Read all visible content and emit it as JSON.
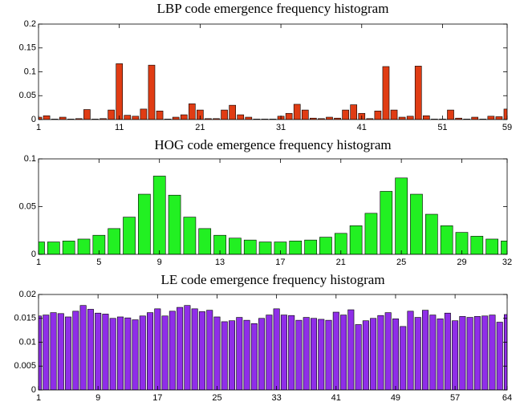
{
  "chart_data": [
    {
      "type": "bar",
      "title": "LBP code emergence frequency histogram",
      "color": "#e03c14",
      "x": [
        1,
        2,
        3,
        4,
        5,
        6,
        7,
        8,
        9,
        10,
        11,
        12,
        13,
        14,
        15,
        16,
        17,
        18,
        19,
        20,
        21,
        22,
        23,
        24,
        25,
        26,
        27,
        28,
        29,
        30,
        31,
        32,
        33,
        34,
        35,
        36,
        37,
        38,
        39,
        40,
        41,
        42,
        43,
        44,
        45,
        46,
        47,
        48,
        49,
        50,
        51,
        52,
        53,
        54,
        55,
        56,
        57,
        58,
        59
      ],
      "values": [
        0.005,
        0.008,
        0.001,
        0.005,
        0.001,
        0.002,
        0.021,
        0.001,
        0.002,
        0.02,
        0.117,
        0.009,
        0.007,
        0.022,
        0.114,
        0.018,
        0.001,
        0.005,
        0.01,
        0.033,
        0.02,
        0.002,
        0.002,
        0.02,
        0.03,
        0.01,
        0.005,
        0.001,
        0.001,
        0.001,
        0.007,
        0.013,
        0.032,
        0.02,
        0.003,
        0.002,
        0.005,
        0.003,
        0.02,
        0.031,
        0.013,
        0.002,
        0.018,
        0.111,
        0.02,
        0.005,
        0.007,
        0.112,
        0.008,
        0.001,
        0.001,
        0.02,
        0.003,
        0.001,
        0.005,
        0.001,
        0.007,
        0.006,
        0.022
      ],
      "xlim": [
        1,
        59
      ],
      "xticks": [
        1,
        11,
        21,
        31,
        41,
        51,
        59
      ],
      "ylim": [
        0,
        0.2
      ],
      "yticks": [
        0,
        0.05,
        0.1,
        0.15,
        0.2
      ]
    },
    {
      "type": "bar",
      "title": "HOG code emergence frequency histogram",
      "color": "#22f022",
      "x": [
        1,
        2,
        3,
        4,
        5,
        6,
        7,
        8,
        9,
        10,
        11,
        12,
        13,
        14,
        15,
        16,
        17,
        18,
        19,
        20,
        21,
        22,
        23,
        24,
        25,
        26,
        27,
        28,
        29,
        30,
        31,
        32
      ],
      "values": [
        0.013,
        0.013,
        0.014,
        0.016,
        0.02,
        0.027,
        0.039,
        0.063,
        0.082,
        0.062,
        0.039,
        0.027,
        0.02,
        0.017,
        0.015,
        0.013,
        0.013,
        0.014,
        0.015,
        0.018,
        0.022,
        0.03,
        0.043,
        0.066,
        0.08,
        0.063,
        0.042,
        0.03,
        0.023,
        0.019,
        0.016,
        0.014
      ],
      "xlim": [
        1,
        32
      ],
      "xticks": [
        1,
        5,
        9,
        13,
        17,
        21,
        25,
        29,
        32
      ],
      "ylim": [
        0,
        0.1
      ],
      "yticks": [
        0,
        0.05,
        0.1
      ]
    },
    {
      "type": "bar",
      "title": "LE code emergence frequency histogram",
      "color": "#8f2ee8",
      "x": [
        1,
        2,
        3,
        4,
        5,
        6,
        7,
        8,
        9,
        10,
        11,
        12,
        13,
        14,
        15,
        16,
        17,
        18,
        19,
        20,
        21,
        22,
        23,
        24,
        25,
        26,
        27,
        28,
        29,
        30,
        31,
        32,
        33,
        34,
        35,
        36,
        37,
        38,
        39,
        40,
        41,
        42,
        43,
        44,
        45,
        46,
        47,
        48,
        49,
        50,
        51,
        52,
        53,
        54,
        55,
        56,
        57,
        58,
        59,
        60,
        61,
        62,
        63,
        64
      ],
      "values": [
        0.0155,
        0.0157,
        0.0162,
        0.016,
        0.0153,
        0.0165,
        0.0177,
        0.0169,
        0.0161,
        0.0159,
        0.015,
        0.0153,
        0.0151,
        0.0147,
        0.0155,
        0.0162,
        0.017,
        0.0155,
        0.0165,
        0.0173,
        0.0177,
        0.017,
        0.0164,
        0.0167,
        0.0153,
        0.0143,
        0.0145,
        0.0152,
        0.0146,
        0.0139,
        0.015,
        0.0157,
        0.017,
        0.0157,
        0.0156,
        0.0146,
        0.0152,
        0.015,
        0.0148,
        0.0146,
        0.0163,
        0.0157,
        0.0168,
        0.0137,
        0.0145,
        0.015,
        0.0156,
        0.0162,
        0.0149,
        0.0133,
        0.0165,
        0.0152,
        0.0167,
        0.0157,
        0.0149,
        0.0161,
        0.0145,
        0.0154,
        0.0152,
        0.0154,
        0.0155,
        0.0157,
        0.0142,
        0.0158
      ],
      "xlim": [
        1,
        64
      ],
      "xticks": [
        1,
        9,
        17,
        25,
        33,
        41,
        49,
        57,
        64
      ],
      "ylim": [
        0,
        0.02
      ],
      "yticks": [
        0,
        0.005,
        0.01,
        0.015,
        0.02
      ]
    }
  ]
}
